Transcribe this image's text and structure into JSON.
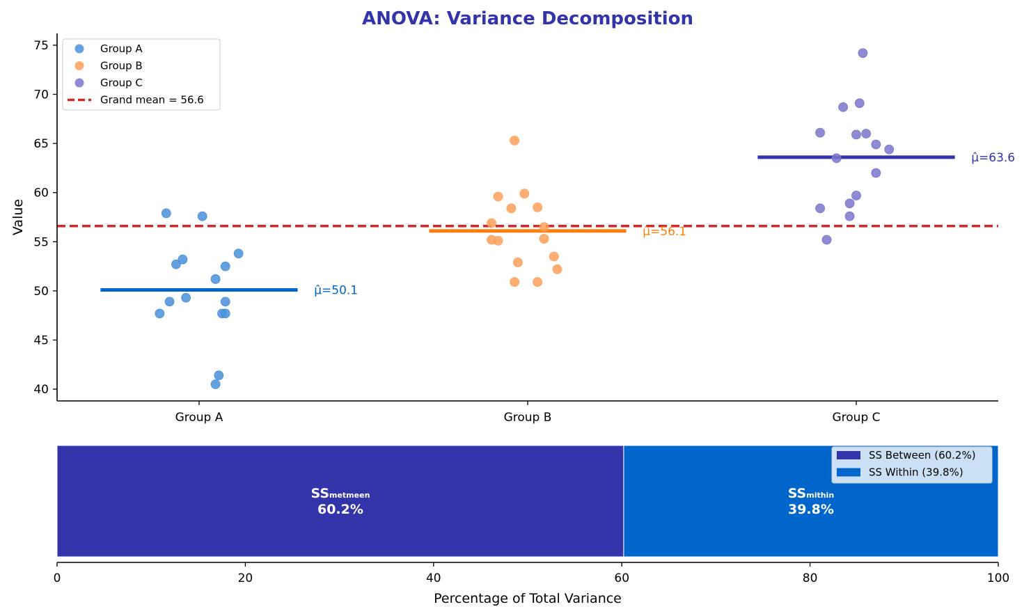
{
  "chart_data": [
    {
      "type": "scatter",
      "title": "ANOVA: Variance Decomposition",
      "ylabel": "Value",
      "xlabel": "",
      "ylim": [
        38.8,
        76.2
      ],
      "yticks": [
        40,
        45,
        50,
        55,
        60,
        65,
        70,
        75
      ],
      "categories": [
        "Group A",
        "Group B",
        "Group C"
      ],
      "grand_mean": {
        "value": 56.6,
        "label": "Grand mean = 56.6",
        "color": "#d62728"
      },
      "legend_position": "top-left",
      "series": [
        {
          "name": "Group A",
          "color": "#4a90d9",
          "mean": 50.1,
          "mean_label": "μ̂=50.1",
          "mean_color": "#0066cc",
          "points": [
            [
              -0.12,
              47.7
            ],
            [
              -0.09,
              48.9
            ],
            [
              -0.1,
              57.9
            ],
            [
              -0.07,
              52.7
            ],
            [
              -0.05,
              53.2
            ],
            [
              -0.04,
              49.3
            ],
            [
              0.01,
              57.6
            ],
            [
              0.05,
              51.2
            ],
            [
              0.07,
              47.7
            ],
            [
              0.08,
              48.9
            ],
            [
              0.08,
              47.7
            ],
            [
              0.08,
              52.5
            ],
            [
              0.12,
              53.8
            ],
            [
              0.06,
              41.4
            ],
            [
              0.05,
              40.5
            ]
          ]
        },
        {
          "name": "Group B",
          "color": "#ffa05a",
          "mean": 56.1,
          "mean_label": "μ̂=56.1",
          "mean_color": "#ff7f0e",
          "points": [
            [
              -0.11,
              56.9
            ],
            [
              -0.11,
              55.2
            ],
            [
              -0.09,
              55.1
            ],
            [
              -0.09,
              59.6
            ],
            [
              -0.05,
              58.4
            ],
            [
              -0.04,
              65.3
            ],
            [
              -0.04,
              50.9
            ],
            [
              -0.03,
              52.9
            ],
            [
              -0.01,
              59.9
            ],
            [
              0.03,
              50.9
            ],
            [
              0.03,
              58.5
            ],
            [
              0.05,
              56.5
            ],
            [
              0.05,
              55.3
            ],
            [
              0.08,
              53.5
            ],
            [
              0.09,
              52.2
            ]
          ]
        },
        {
          "name": "Group C",
          "color": "#7b75cc",
          "mean": 63.6,
          "mean_label": "μ̂=63.6",
          "mean_color": "#3333aa",
          "points": [
            [
              -0.11,
              66.1
            ],
            [
              -0.11,
              58.4
            ],
            [
              -0.09,
              55.2
            ],
            [
              -0.06,
              63.5
            ],
            [
              -0.04,
              68.7
            ],
            [
              -0.02,
              57.6
            ],
            [
              -0.02,
              58.9
            ],
            [
              0,
              59.7
            ],
            [
              0,
              65.9
            ],
            [
              0.01,
              69.1
            ],
            [
              0.02,
              74.2
            ],
            [
              0.03,
              66.0
            ],
            [
              0.06,
              62.0
            ],
            [
              0.06,
              64.9
            ],
            [
              0.1,
              64.4
            ]
          ]
        }
      ]
    },
    {
      "type": "bar",
      "orientation": "horizontal-stacked",
      "xlabel": "Percentage of Total Variance",
      "xlim": [
        0,
        100
      ],
      "xticks": [
        0,
        20,
        40,
        60,
        80,
        100
      ],
      "legend_position": "top-right",
      "segments": [
        {
          "name": "SS Between (60.2%)",
          "value": 60.2,
          "color": "#3333aa",
          "label_main": "SS",
          "label_sub": "metmeen",
          "label_pct": "60.2%"
        },
        {
          "name": "SS Within (39.8%)",
          "value": 39.8,
          "color": "#0066cc",
          "label_main": "SS",
          "label_sub": "mithin",
          "label_pct": "39.8%"
        }
      ]
    }
  ]
}
